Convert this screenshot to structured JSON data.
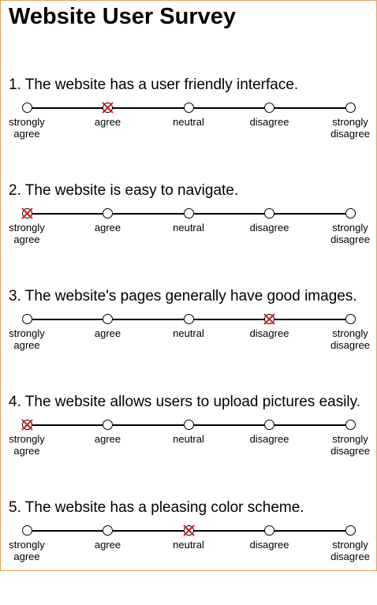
{
  "title": "Website User Survey",
  "scale_labels": [
    "strongly\nagree",
    "agree",
    "neutral",
    "disagree",
    "strongly\ndisagree"
  ],
  "questions": [
    {
      "text": "1. The website has a user friendly interface.",
      "selected_index": 1
    },
    {
      "text": "2. The website is easy to navigate.",
      "selected_index": 0
    },
    {
      "text": "3. The website's pages generally have good images.",
      "selected_index": 3
    },
    {
      "text": "4. The website allows users to upload pictures easily.",
      "selected_index": 0
    },
    {
      "text": "5. The website has a pleasing color scheme.",
      "selected_index": 2
    }
  ],
  "colors": {
    "selection_mark": "#d62020",
    "border": "#e8a25a"
  }
}
